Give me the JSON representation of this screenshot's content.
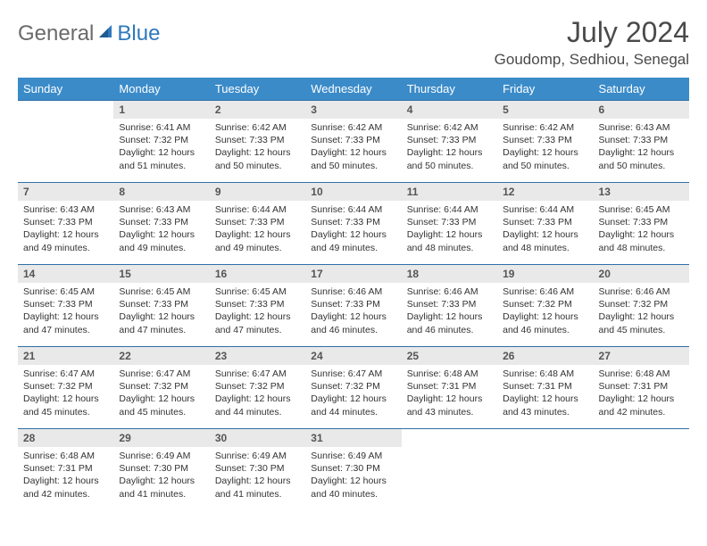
{
  "brand": {
    "part1": "General",
    "part2": "Blue"
  },
  "title": "July 2024",
  "location": "Goudomp, Sedhiou, Senegal",
  "colors": {
    "header_bg": "#3b8bc9",
    "header_text": "#ffffff",
    "daynum_bg": "#e9e9e9",
    "row_border": "#2f6fa8",
    "brand_gray": "#6a6a6a",
    "brand_blue": "#2f78bd"
  },
  "weekdays": [
    "Sunday",
    "Monday",
    "Tuesday",
    "Wednesday",
    "Thursday",
    "Friday",
    "Saturday"
  ],
  "weeks": [
    [
      {
        "n": "",
        "sr": "",
        "ss": "",
        "dl": "",
        "empty": true
      },
      {
        "n": "1",
        "sr": "Sunrise: 6:41 AM",
        "ss": "Sunset: 7:32 PM",
        "dl": "Daylight: 12 hours and 51 minutes."
      },
      {
        "n": "2",
        "sr": "Sunrise: 6:42 AM",
        "ss": "Sunset: 7:33 PM",
        "dl": "Daylight: 12 hours and 50 minutes."
      },
      {
        "n": "3",
        "sr": "Sunrise: 6:42 AM",
        "ss": "Sunset: 7:33 PM",
        "dl": "Daylight: 12 hours and 50 minutes."
      },
      {
        "n": "4",
        "sr": "Sunrise: 6:42 AM",
        "ss": "Sunset: 7:33 PM",
        "dl": "Daylight: 12 hours and 50 minutes."
      },
      {
        "n": "5",
        "sr": "Sunrise: 6:42 AM",
        "ss": "Sunset: 7:33 PM",
        "dl": "Daylight: 12 hours and 50 minutes."
      },
      {
        "n": "6",
        "sr": "Sunrise: 6:43 AM",
        "ss": "Sunset: 7:33 PM",
        "dl": "Daylight: 12 hours and 50 minutes."
      }
    ],
    [
      {
        "n": "7",
        "sr": "Sunrise: 6:43 AM",
        "ss": "Sunset: 7:33 PM",
        "dl": "Daylight: 12 hours and 49 minutes."
      },
      {
        "n": "8",
        "sr": "Sunrise: 6:43 AM",
        "ss": "Sunset: 7:33 PM",
        "dl": "Daylight: 12 hours and 49 minutes."
      },
      {
        "n": "9",
        "sr": "Sunrise: 6:44 AM",
        "ss": "Sunset: 7:33 PM",
        "dl": "Daylight: 12 hours and 49 minutes."
      },
      {
        "n": "10",
        "sr": "Sunrise: 6:44 AM",
        "ss": "Sunset: 7:33 PM",
        "dl": "Daylight: 12 hours and 49 minutes."
      },
      {
        "n": "11",
        "sr": "Sunrise: 6:44 AM",
        "ss": "Sunset: 7:33 PM",
        "dl": "Daylight: 12 hours and 48 minutes."
      },
      {
        "n": "12",
        "sr": "Sunrise: 6:44 AM",
        "ss": "Sunset: 7:33 PM",
        "dl": "Daylight: 12 hours and 48 minutes."
      },
      {
        "n": "13",
        "sr": "Sunrise: 6:45 AM",
        "ss": "Sunset: 7:33 PM",
        "dl": "Daylight: 12 hours and 48 minutes."
      }
    ],
    [
      {
        "n": "14",
        "sr": "Sunrise: 6:45 AM",
        "ss": "Sunset: 7:33 PM",
        "dl": "Daylight: 12 hours and 47 minutes."
      },
      {
        "n": "15",
        "sr": "Sunrise: 6:45 AM",
        "ss": "Sunset: 7:33 PM",
        "dl": "Daylight: 12 hours and 47 minutes."
      },
      {
        "n": "16",
        "sr": "Sunrise: 6:45 AM",
        "ss": "Sunset: 7:33 PM",
        "dl": "Daylight: 12 hours and 47 minutes."
      },
      {
        "n": "17",
        "sr": "Sunrise: 6:46 AM",
        "ss": "Sunset: 7:33 PM",
        "dl": "Daylight: 12 hours and 46 minutes."
      },
      {
        "n": "18",
        "sr": "Sunrise: 6:46 AM",
        "ss": "Sunset: 7:33 PM",
        "dl": "Daylight: 12 hours and 46 minutes."
      },
      {
        "n": "19",
        "sr": "Sunrise: 6:46 AM",
        "ss": "Sunset: 7:32 PM",
        "dl": "Daylight: 12 hours and 46 minutes."
      },
      {
        "n": "20",
        "sr": "Sunrise: 6:46 AM",
        "ss": "Sunset: 7:32 PM",
        "dl": "Daylight: 12 hours and 45 minutes."
      }
    ],
    [
      {
        "n": "21",
        "sr": "Sunrise: 6:47 AM",
        "ss": "Sunset: 7:32 PM",
        "dl": "Daylight: 12 hours and 45 minutes."
      },
      {
        "n": "22",
        "sr": "Sunrise: 6:47 AM",
        "ss": "Sunset: 7:32 PM",
        "dl": "Daylight: 12 hours and 45 minutes."
      },
      {
        "n": "23",
        "sr": "Sunrise: 6:47 AM",
        "ss": "Sunset: 7:32 PM",
        "dl": "Daylight: 12 hours and 44 minutes."
      },
      {
        "n": "24",
        "sr": "Sunrise: 6:47 AM",
        "ss": "Sunset: 7:32 PM",
        "dl": "Daylight: 12 hours and 44 minutes."
      },
      {
        "n": "25",
        "sr": "Sunrise: 6:48 AM",
        "ss": "Sunset: 7:31 PM",
        "dl": "Daylight: 12 hours and 43 minutes."
      },
      {
        "n": "26",
        "sr": "Sunrise: 6:48 AM",
        "ss": "Sunset: 7:31 PM",
        "dl": "Daylight: 12 hours and 43 minutes."
      },
      {
        "n": "27",
        "sr": "Sunrise: 6:48 AM",
        "ss": "Sunset: 7:31 PM",
        "dl": "Daylight: 12 hours and 42 minutes."
      }
    ],
    [
      {
        "n": "28",
        "sr": "Sunrise: 6:48 AM",
        "ss": "Sunset: 7:31 PM",
        "dl": "Daylight: 12 hours and 42 minutes."
      },
      {
        "n": "29",
        "sr": "Sunrise: 6:49 AM",
        "ss": "Sunset: 7:30 PM",
        "dl": "Daylight: 12 hours and 41 minutes."
      },
      {
        "n": "30",
        "sr": "Sunrise: 6:49 AM",
        "ss": "Sunset: 7:30 PM",
        "dl": "Daylight: 12 hours and 41 minutes."
      },
      {
        "n": "31",
        "sr": "Sunrise: 6:49 AM",
        "ss": "Sunset: 7:30 PM",
        "dl": "Daylight: 12 hours and 40 minutes."
      },
      {
        "n": "",
        "sr": "",
        "ss": "",
        "dl": "",
        "empty": true
      },
      {
        "n": "",
        "sr": "",
        "ss": "",
        "dl": "",
        "empty": true
      },
      {
        "n": "",
        "sr": "",
        "ss": "",
        "dl": "",
        "empty": true
      }
    ]
  ]
}
